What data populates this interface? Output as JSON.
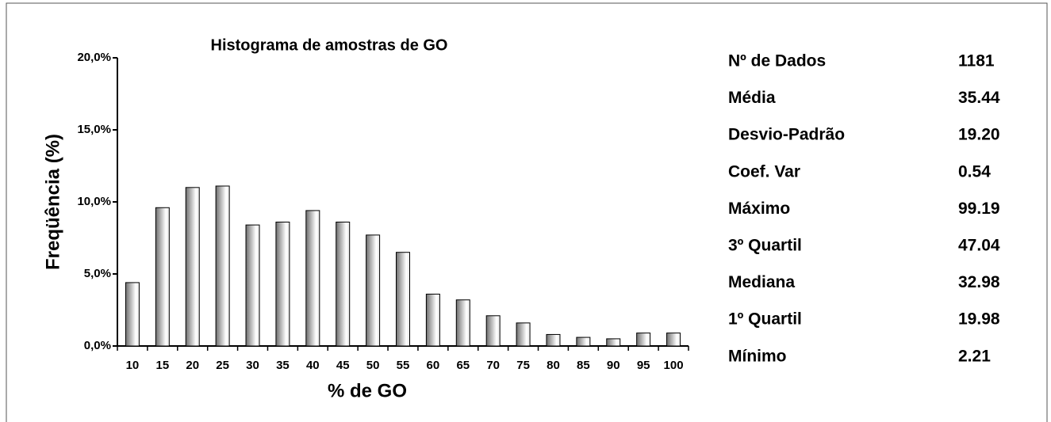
{
  "chart_data": {
    "type": "bar",
    "title": "Histograma de amostras de GO",
    "x_label": "% de GO",
    "y_label": "Freqüência (%)",
    "categories": [
      "10",
      "15",
      "20",
      "25",
      "30",
      "35",
      "40",
      "45",
      "50",
      "55",
      "60",
      "65",
      "70",
      "75",
      "80",
      "85",
      "90",
      "95",
      "100"
    ],
    "values": [
      4.4,
      9.6,
      11.0,
      11.1,
      8.4,
      8.6,
      9.4,
      8.6,
      7.7,
      6.5,
      3.6,
      3.2,
      2.1,
      1.6,
      0.8,
      0.6,
      0.5,
      0.9,
      0.9
    ],
    "color": "#808080",
    "ylim": [
      0,
      20
    ],
    "yticks": [
      {
        "value": 0,
        "label": "0,0%"
      },
      {
        "value": 5,
        "label": "5,0%"
      },
      {
        "value": 10,
        "label": "10,0%"
      },
      {
        "value": 15,
        "label": "15,0%"
      },
      {
        "value": 20,
        "label": "20,0%"
      }
    ],
    "grid": false
  },
  "stats": {
    "rows": [
      [
        "Nº de Dados",
        "1181"
      ],
      [
        "Média",
        "35.44"
      ],
      [
        "Desvio-Padrão",
        "19.20"
      ],
      [
        "Coef. Var",
        "0.54"
      ],
      [
        "Máximo",
        "99.19"
      ],
      [
        "3º Quartil",
        "47.04"
      ],
      [
        "Mediana",
        "32.98"
      ],
      [
        "1º Quartil",
        "19.98"
      ],
      [
        "Mínimo",
        "2.21"
      ]
    ]
  }
}
